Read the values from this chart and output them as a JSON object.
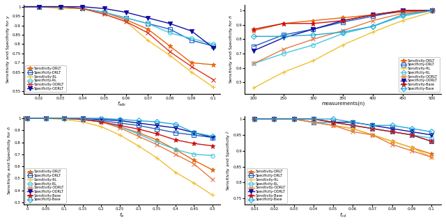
{
  "subplot1": {
    "xlabel": "$f_{adv}$",
    "ylabel": "Sensitivity and Specificity for $y$",
    "xlim": [
      0.013,
      0.103
    ],
    "ylim": [
      0.535,
      1.01
    ],
    "xticks": [
      0.02,
      0.03,
      0.04,
      0.05,
      0.06,
      0.07,
      0.08,
      0.09,
      0.1
    ],
    "yticks": [
      0.55,
      0.65,
      0.7,
      0.75,
      0.8,
      0.85,
      0.9,
      0.95,
      1.0
    ],
    "x": [
      0.01,
      0.02,
      0.03,
      0.04,
      0.05,
      0.06,
      0.07,
      0.08,
      0.09,
      0.1
    ],
    "series": [
      {
        "name": "Sensitivity-DRLT",
        "color": "#E8650A",
        "marker": "*",
        "mfc": "#E8650A",
        "ms": 5,
        "y": [
          1.0,
          1.0,
          1.0,
          0.99,
          0.97,
          0.93,
          0.88,
          0.79,
          0.7,
          0.69
        ]
      },
      {
        "name": "Specificity-DRLT",
        "color": "#1E5FBF",
        "marker": "s",
        "mfc": "none",
        "ms": 4,
        "y": [
          1.0,
          1.0,
          1.0,
          0.99,
          0.97,
          0.94,
          0.91,
          0.88,
          0.82,
          0.79
        ]
      },
      {
        "name": "Sensitivity-RL",
        "color": "#F0C030",
        "marker": "+",
        "mfc": "#F0C030",
        "ms": 5,
        "y": [
          1.0,
          1.0,
          0.99,
          0.99,
          0.96,
          0.92,
          0.82,
          0.74,
          0.65,
          0.57
        ]
      },
      {
        "name": "Specificity-RL",
        "color": "#40C8E0",
        "marker": "o",
        "mfc": "none",
        "ms": 4,
        "y": [
          1.0,
          1.0,
          1.0,
          0.99,
          0.97,
          0.94,
          0.91,
          0.86,
          0.83,
          0.8
        ]
      },
      {
        "name": "Sensitivity-ODRLT",
        "color": "#E03020",
        "marker": "x",
        "mfc": "#E03020",
        "ms": 4,
        "y": [
          1.0,
          1.0,
          1.0,
          0.99,
          0.96,
          0.92,
          0.86,
          0.76,
          0.68,
          0.61
        ]
      },
      {
        "name": "Specificity-ODRLT",
        "color": "#1010A0",
        "marker": "v",
        "mfc": "#1010A0",
        "ms": 5,
        "y": [
          1.0,
          1.0,
          1.0,
          1.0,
          0.99,
          0.97,
          0.94,
          0.91,
          0.87,
          0.78
        ]
      }
    ],
    "legend_loc": "lower left"
  },
  "subplot2": {
    "xlabel": "measurements(n)",
    "ylabel": "Sensitivity and Specificity for $\\hat{n}$",
    "xlim": [
      185,
      515
    ],
    "ylim": [
      0.42,
      1.04
    ],
    "xticks": [
      200,
      250,
      300,
      350,
      400,
      450,
      500
    ],
    "yticks": [
      0.5,
      0.6,
      0.7,
      0.8,
      0.9,
      1.0
    ],
    "x": [
      200,
      250,
      300,
      350,
      400,
      450,
      500
    ],
    "series": [
      {
        "name": "Sensitivity-DRLT",
        "color": "#E8650A",
        "marker": "*",
        "mfc": "#E8650A",
        "ms": 5,
        "y": [
          0.86,
          0.91,
          0.93,
          0.95,
          0.97,
          0.99,
          1.0
        ]
      },
      {
        "name": "Specificity-DRLT",
        "color": "#1E5FBF",
        "marker": "s",
        "mfc": "none",
        "ms": 4,
        "y": [
          0.75,
          0.83,
          0.87,
          0.92,
          0.96,
          1.0,
          1.0
        ]
      },
      {
        "name": "Sensitivity-RL",
        "color": "#F0C030",
        "marker": "+",
        "mfc": "#F0C030",
        "ms": 5,
        "y": [
          0.46,
          0.57,
          0.65,
          0.76,
          0.85,
          0.93,
          0.99
        ]
      },
      {
        "name": "Specificity-RL",
        "color": "#40C8E0",
        "marker": "o",
        "mfc": "none",
        "ms": 4,
        "y": [
          0.63,
          0.7,
          0.76,
          0.84,
          0.89,
          0.96,
          1.0
        ]
      },
      {
        "name": "Sensitivity-ODRLT",
        "color": "#E87840",
        "marker": "x",
        "mfc": "#E87840",
        "ms": 4,
        "y": [
          0.63,
          0.73,
          0.8,
          0.86,
          0.93,
          0.98,
          1.0
        ]
      },
      {
        "name": "Specificity-ODRLT",
        "color": "#1010A0",
        "marker": "v",
        "mfc": "#1010A0",
        "ms": 5,
        "y": [
          0.72,
          0.81,
          0.87,
          0.93,
          0.97,
          1.0,
          1.0
        ]
      },
      {
        "name": "Sensitivity-Base",
        "color": "#CC1010",
        "marker": "*",
        "mfc": "#CC1010",
        "ms": 5,
        "y": [
          0.87,
          0.91,
          0.91,
          0.93,
          0.97,
          1.0,
          1.0
        ]
      },
      {
        "name": "Specificity-Base",
        "color": "#20A8D8",
        "marker": "D",
        "mfc": "none",
        "ms": 4,
        "y": [
          0.82,
          0.82,
          0.83,
          0.85,
          0.89,
          0.97,
          1.0
        ]
      }
    ],
    "legend_loc": "lower right"
  },
  "subplot3": {
    "xlabel": "$f_e$",
    "ylabel": "Sensitivity and Specificity for $\\hat{n}$",
    "xlim": [
      -0.01,
      0.52
    ],
    "ylim": [
      0.28,
      1.02
    ],
    "xticks": [
      0.0,
      0.05,
      0.1,
      0.15,
      0.2,
      0.25,
      0.3,
      0.35,
      0.4,
      0.45,
      0.5
    ],
    "yticks": [
      0.3,
      0.4,
      0.5,
      0.6,
      0.7,
      0.8,
      0.9,
      1.0
    ],
    "x": [
      0.0,
      0.05,
      0.1,
      0.15,
      0.2,
      0.25,
      0.3,
      0.35,
      0.4,
      0.45,
      0.5
    ],
    "series": [
      {
        "name": "Sensitivity-DRLT",
        "color": "#E8650A",
        "marker": "*",
        "mfc": "#E8650A",
        "ms": 5,
        "y": [
          1.0,
          1.0,
          1.0,
          0.99,
          0.97,
          0.93,
          0.88,
          0.82,
          0.74,
          0.65,
          0.57
        ]
      },
      {
        "name": "Specificity-DRLT",
        "color": "#1E5FBF",
        "marker": "s",
        "mfc": "none",
        "ms": 4,
        "y": [
          1.0,
          1.0,
          1.0,
          0.99,
          0.98,
          0.96,
          0.94,
          0.91,
          0.88,
          0.86,
          0.84
        ]
      },
      {
        "name": "Sensitivity-RL",
        "color": "#F0C030",
        "marker": "+",
        "mfc": "#F0C030",
        "ms": 5,
        "y": [
          1.0,
          1.0,
          0.99,
          0.97,
          0.93,
          0.86,
          0.77,
          0.67,
          0.55,
          0.46,
          0.36
        ]
      },
      {
        "name": "Specificity-RL",
        "color": "#40C8E0",
        "marker": "o",
        "mfc": "none",
        "ms": 4,
        "y": [
          1.0,
          1.0,
          1.0,
          0.99,
          0.97,
          0.93,
          0.87,
          0.8,
          0.74,
          0.7,
          0.69
        ]
      },
      {
        "name": "Sensitivity-ODRLT",
        "color": "#E87840",
        "marker": "x",
        "mfc": "#E87840",
        "ms": 4,
        "y": [
          1.0,
          1.0,
          1.0,
          0.99,
          0.97,
          0.92,
          0.85,
          0.78,
          0.7,
          0.62,
          0.49
        ]
      },
      {
        "name": "Specificity-ODRLT",
        "color": "#1010A0",
        "marker": "v",
        "mfc": "#1010A0",
        "ms": 5,
        "y": [
          1.0,
          1.0,
          1.0,
          1.0,
          0.99,
          0.98,
          0.96,
          0.94,
          0.92,
          0.88,
          0.84
        ]
      },
      {
        "name": "Sensitivity-Base",
        "color": "#CC1010",
        "marker": "*",
        "mfc": "#CC1010",
        "ms": 5,
        "y": [
          1.0,
          1.0,
          1.0,
          0.99,
          0.97,
          0.94,
          0.91,
          0.87,
          0.82,
          0.79,
          0.77
        ]
      },
      {
        "name": "Specificity-Base",
        "color": "#20A8D8",
        "marker": "D",
        "mfc": "none",
        "ms": 4,
        "y": [
          1.0,
          1.0,
          1.0,
          1.0,
          1.0,
          0.99,
          0.98,
          0.97,
          0.95,
          0.88,
          0.85
        ]
      }
    ],
    "legend_loc": "lower left"
  },
  "subplot4": {
    "xlabel": "$f_{cd}$",
    "ylabel": "Sensitivity and Specificity $\\hat{r}$",
    "xlim": [
      0.005,
      0.105
    ],
    "ylim": [
      0.73,
      1.01
    ],
    "xticks": [
      0.01,
      0.02,
      0.03,
      0.04,
      0.05,
      0.06,
      0.07,
      0.08,
      0.09,
      0.1
    ],
    "yticks": [
      0.75,
      0.8,
      0.85,
      0.9,
      0.95,
      1.0
    ],
    "x": [
      0.01,
      0.02,
      0.03,
      0.04,
      0.05,
      0.06,
      0.07,
      0.08,
      0.09,
      0.1
    ],
    "series": [
      {
        "name": "Sensitivity-DRLT",
        "color": "#E8650A",
        "marker": "*",
        "mfc": "#E8650A",
        "ms": 5,
        "y": [
          1.0,
          1.0,
          1.0,
          0.99,
          0.98,
          0.97,
          0.95,
          0.93,
          0.91,
          0.89
        ]
      },
      {
        "name": "Specificity-DRLT",
        "color": "#1E5FBF",
        "marker": "s",
        "mfc": "none",
        "ms": 4,
        "y": [
          1.0,
          1.0,
          1.0,
          0.99,
          0.99,
          0.98,
          0.97,
          0.96,
          0.95,
          0.93
        ]
      },
      {
        "name": "Sensitivity-RL",
        "color": "#F0C030",
        "marker": "+",
        "mfc": "#F0C030",
        "ms": 5,
        "y": [
          1.0,
          1.0,
          1.0,
          0.99,
          0.98,
          0.97,
          0.95,
          0.93,
          0.91,
          0.88
        ]
      },
      {
        "name": "Specificity-RL",
        "color": "#40C8E0",
        "marker": "o",
        "mfc": "none",
        "ms": 4,
        "y": [
          1.0,
          1.0,
          1.0,
          0.99,
          0.99,
          0.98,
          0.97,
          0.96,
          0.95,
          0.94
        ]
      },
      {
        "name": "Sensitivity-ODRLT",
        "color": "#E87840",
        "marker": "x",
        "mfc": "#E87840",
        "ms": 4,
        "y": [
          1.0,
          1.0,
          1.0,
          0.99,
          0.98,
          0.96,
          0.95,
          0.92,
          0.9,
          0.88
        ]
      },
      {
        "name": "Specificity-ODRLT",
        "color": "#1010A0",
        "marker": "v",
        "mfc": "#1010A0",
        "ms": 5,
        "y": [
          1.0,
          1.0,
          1.0,
          1.0,
          0.99,
          0.99,
          0.98,
          0.97,
          0.96,
          0.95
        ]
      },
      {
        "name": "Sensitivity-Base",
        "color": "#CC1010",
        "marker": "*",
        "mfc": "#CC1010",
        "ms": 5,
        "y": [
          1.0,
          1.0,
          1.0,
          1.0,
          0.99,
          0.98,
          0.97,
          0.96,
          0.95,
          0.93
        ]
      },
      {
        "name": "Specificity-Base",
        "color": "#20A8D8",
        "marker": "D",
        "mfc": "none",
        "ms": 4,
        "y": [
          1.0,
          1.0,
          1.0,
          1.0,
          1.0,
          0.99,
          0.98,
          0.98,
          0.97,
          0.96
        ]
      }
    ],
    "legend_loc": "lower left"
  }
}
